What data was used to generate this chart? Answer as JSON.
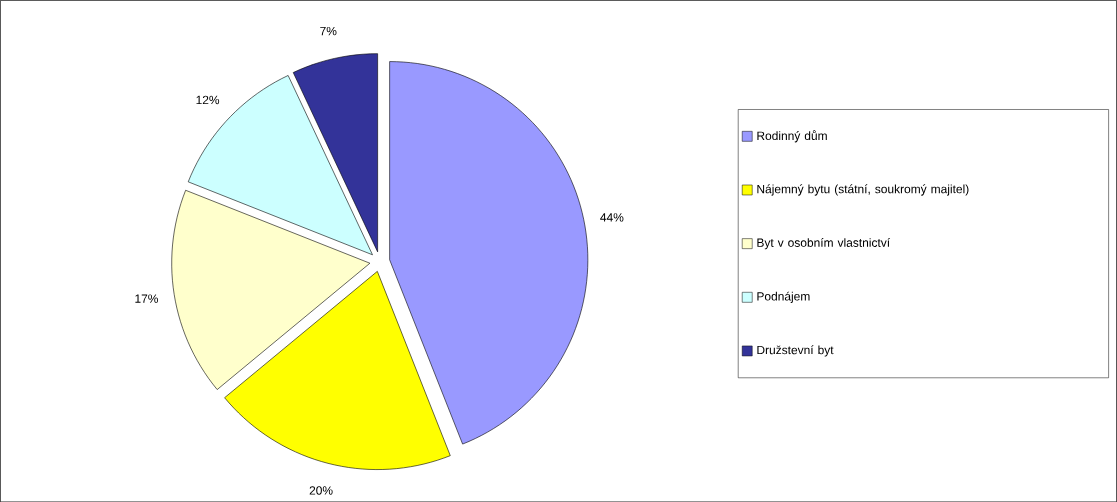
{
  "chart_data": {
    "type": "pie",
    "categories": [
      "Rodinný dům",
      "Nájemný bytu (státní, soukromý majitel)",
      "Byt v osobním vlastnictví",
      "Podnájem",
      "Družstevní byt"
    ],
    "values": [
      44,
      20,
      17,
      12,
      7
    ],
    "colors": [
      "#9999ff",
      "#ffff00",
      "#ffffcc",
      "#ccffff",
      "#333399"
    ],
    "value_labels": [
      "44%",
      "20%",
      "17%",
      "12%",
      "7%"
    ],
    "legend": "right"
  }
}
